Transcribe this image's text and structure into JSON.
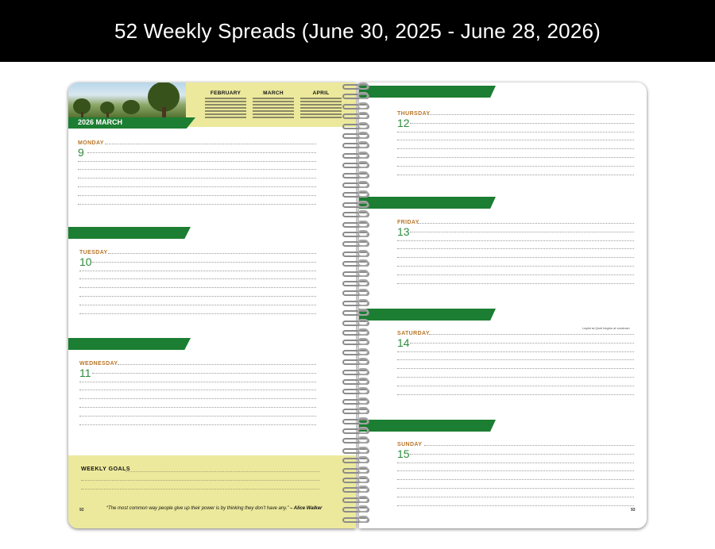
{
  "banner": {
    "title": "52 Weekly Spreads (June 30, 2025 - June 28, 2026)"
  },
  "left_page": {
    "header": {
      "month_label": "2026 MARCH",
      "mini_calendars": [
        {
          "title": "FEBRUARY"
        },
        {
          "title": "MARCH"
        },
        {
          "title": "APRIL"
        }
      ]
    },
    "days": [
      {
        "label": "MONDAY",
        "number": "9"
      },
      {
        "label": "TUESDAY",
        "number": "10"
      },
      {
        "label": "WEDNESDAY",
        "number": "11"
      }
    ],
    "weekly_goals": {
      "title": "WEEKLY GOALS"
    },
    "quote": {
      "text": "“The most common way people give up their power is by thinking they don’t have any.”",
      "author": "– Alice Walker"
    },
    "page_number": "92"
  },
  "right_page": {
    "days": [
      {
        "label": "THURSDAY",
        "number": "12"
      },
      {
        "label": "FRIDAY",
        "number": "13"
      },
      {
        "label": "SATURDAY",
        "number": "14",
        "note": "Laylat al-Qadr begins at sundown"
      },
      {
        "label": "SUNDAY",
        "number": "15"
      }
    ],
    "page_number": "93"
  },
  "colors": {
    "accent_green": "#1c7e32",
    "day_label_orange": "#b8762a",
    "day_number_green": "#2f8a3c",
    "panel_yellow": "#ece99c"
  }
}
